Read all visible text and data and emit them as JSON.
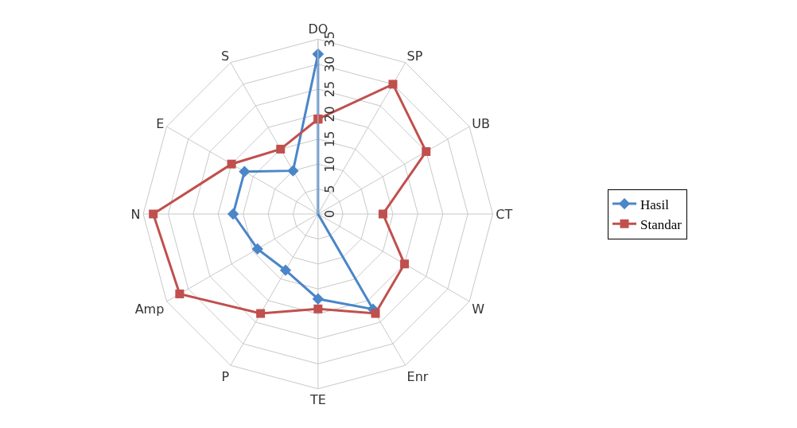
{
  "chart_data": {
    "type": "radar",
    "categories": [
      "DO",
      "SP",
      "UB",
      "CT",
      "W",
      "Enr",
      "TE",
      "P",
      "Amp",
      "N",
      "E",
      "S"
    ],
    "series": [
      {
        "name": "Hasil",
        "color": "#4a86c8",
        "marker": "diamond",
        "values": [
          32,
          0,
          0,
          0,
          0,
          22,
          17,
          13,
          14,
          17,
          17,
          10
        ]
      },
      {
        "name": "Standar",
        "color": "#c0504d",
        "marker": "square",
        "values": [
          19,
          30,
          25,
          13,
          20,
          23,
          19,
          23,
          32,
          33,
          20,
          15
        ]
      }
    ],
    "ylim": [
      0,
      35
    ],
    "yticks": [
      0,
      5,
      10,
      15,
      20,
      25,
      30,
      35
    ],
    "grid": true,
    "legend": "right",
    "line_style": "solid"
  }
}
